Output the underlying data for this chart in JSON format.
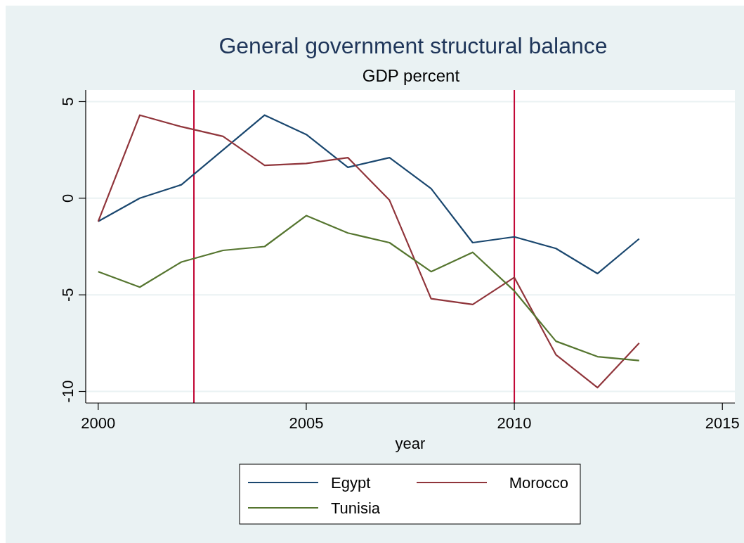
{
  "chart_data": {
    "type": "line",
    "title": "General government structural balance",
    "subtitle": "GDP percent",
    "xlabel": "year",
    "x": [
      2000,
      2001,
      2002,
      2003,
      2004,
      2005,
      2006,
      2007,
      2008,
      2009,
      2010,
      2011,
      2012,
      2013
    ],
    "series": [
      {
        "name": "Egypt",
        "color": "#1a476f",
        "values": [
          -1.2,
          0,
          0.7,
          2.5,
          4.3,
          3.3,
          1.6,
          2.1,
          0.5,
          -2.3,
          -2.0,
          -2.6,
          -3.9,
          -2.1
        ]
      },
      {
        "name": "Morocco",
        "color": "#90353b",
        "values": [
          -1.2,
          4.3,
          3.7,
          3.2,
          1.7,
          1.8,
          2.1,
          -0.1,
          -5.2,
          -5.5,
          -4.1,
          -8.1,
          -9.8,
          -7.5
        ]
      },
      {
        "name": "Tunisia",
        "color": "#55752f",
        "values": [
          -3.8,
          -4.6,
          -3.3,
          -2.7,
          -2.5,
          -0.9,
          -1.8,
          -2.3,
          -3.8,
          -2.8,
          -4.8,
          -7.4,
          -8.2,
          -8.4
        ]
      }
    ],
    "xlim": [
      1999.7,
      2015.3
    ],
    "xticks": [
      2000,
      2005,
      2010,
      2015
    ],
    "ylim": [
      -10.6,
      5.6
    ],
    "yticks": [
      -10,
      -5,
      0,
      5
    ],
    "ref_lines": [
      {
        "axis": "x",
        "value": 2002.3,
        "color": "#c10534"
      },
      {
        "axis": "x",
        "value": 2010,
        "color": "#c10534"
      }
    ],
    "grid": "y",
    "legend": "bottom",
    "line_style": "solid",
    "marker": "none"
  }
}
